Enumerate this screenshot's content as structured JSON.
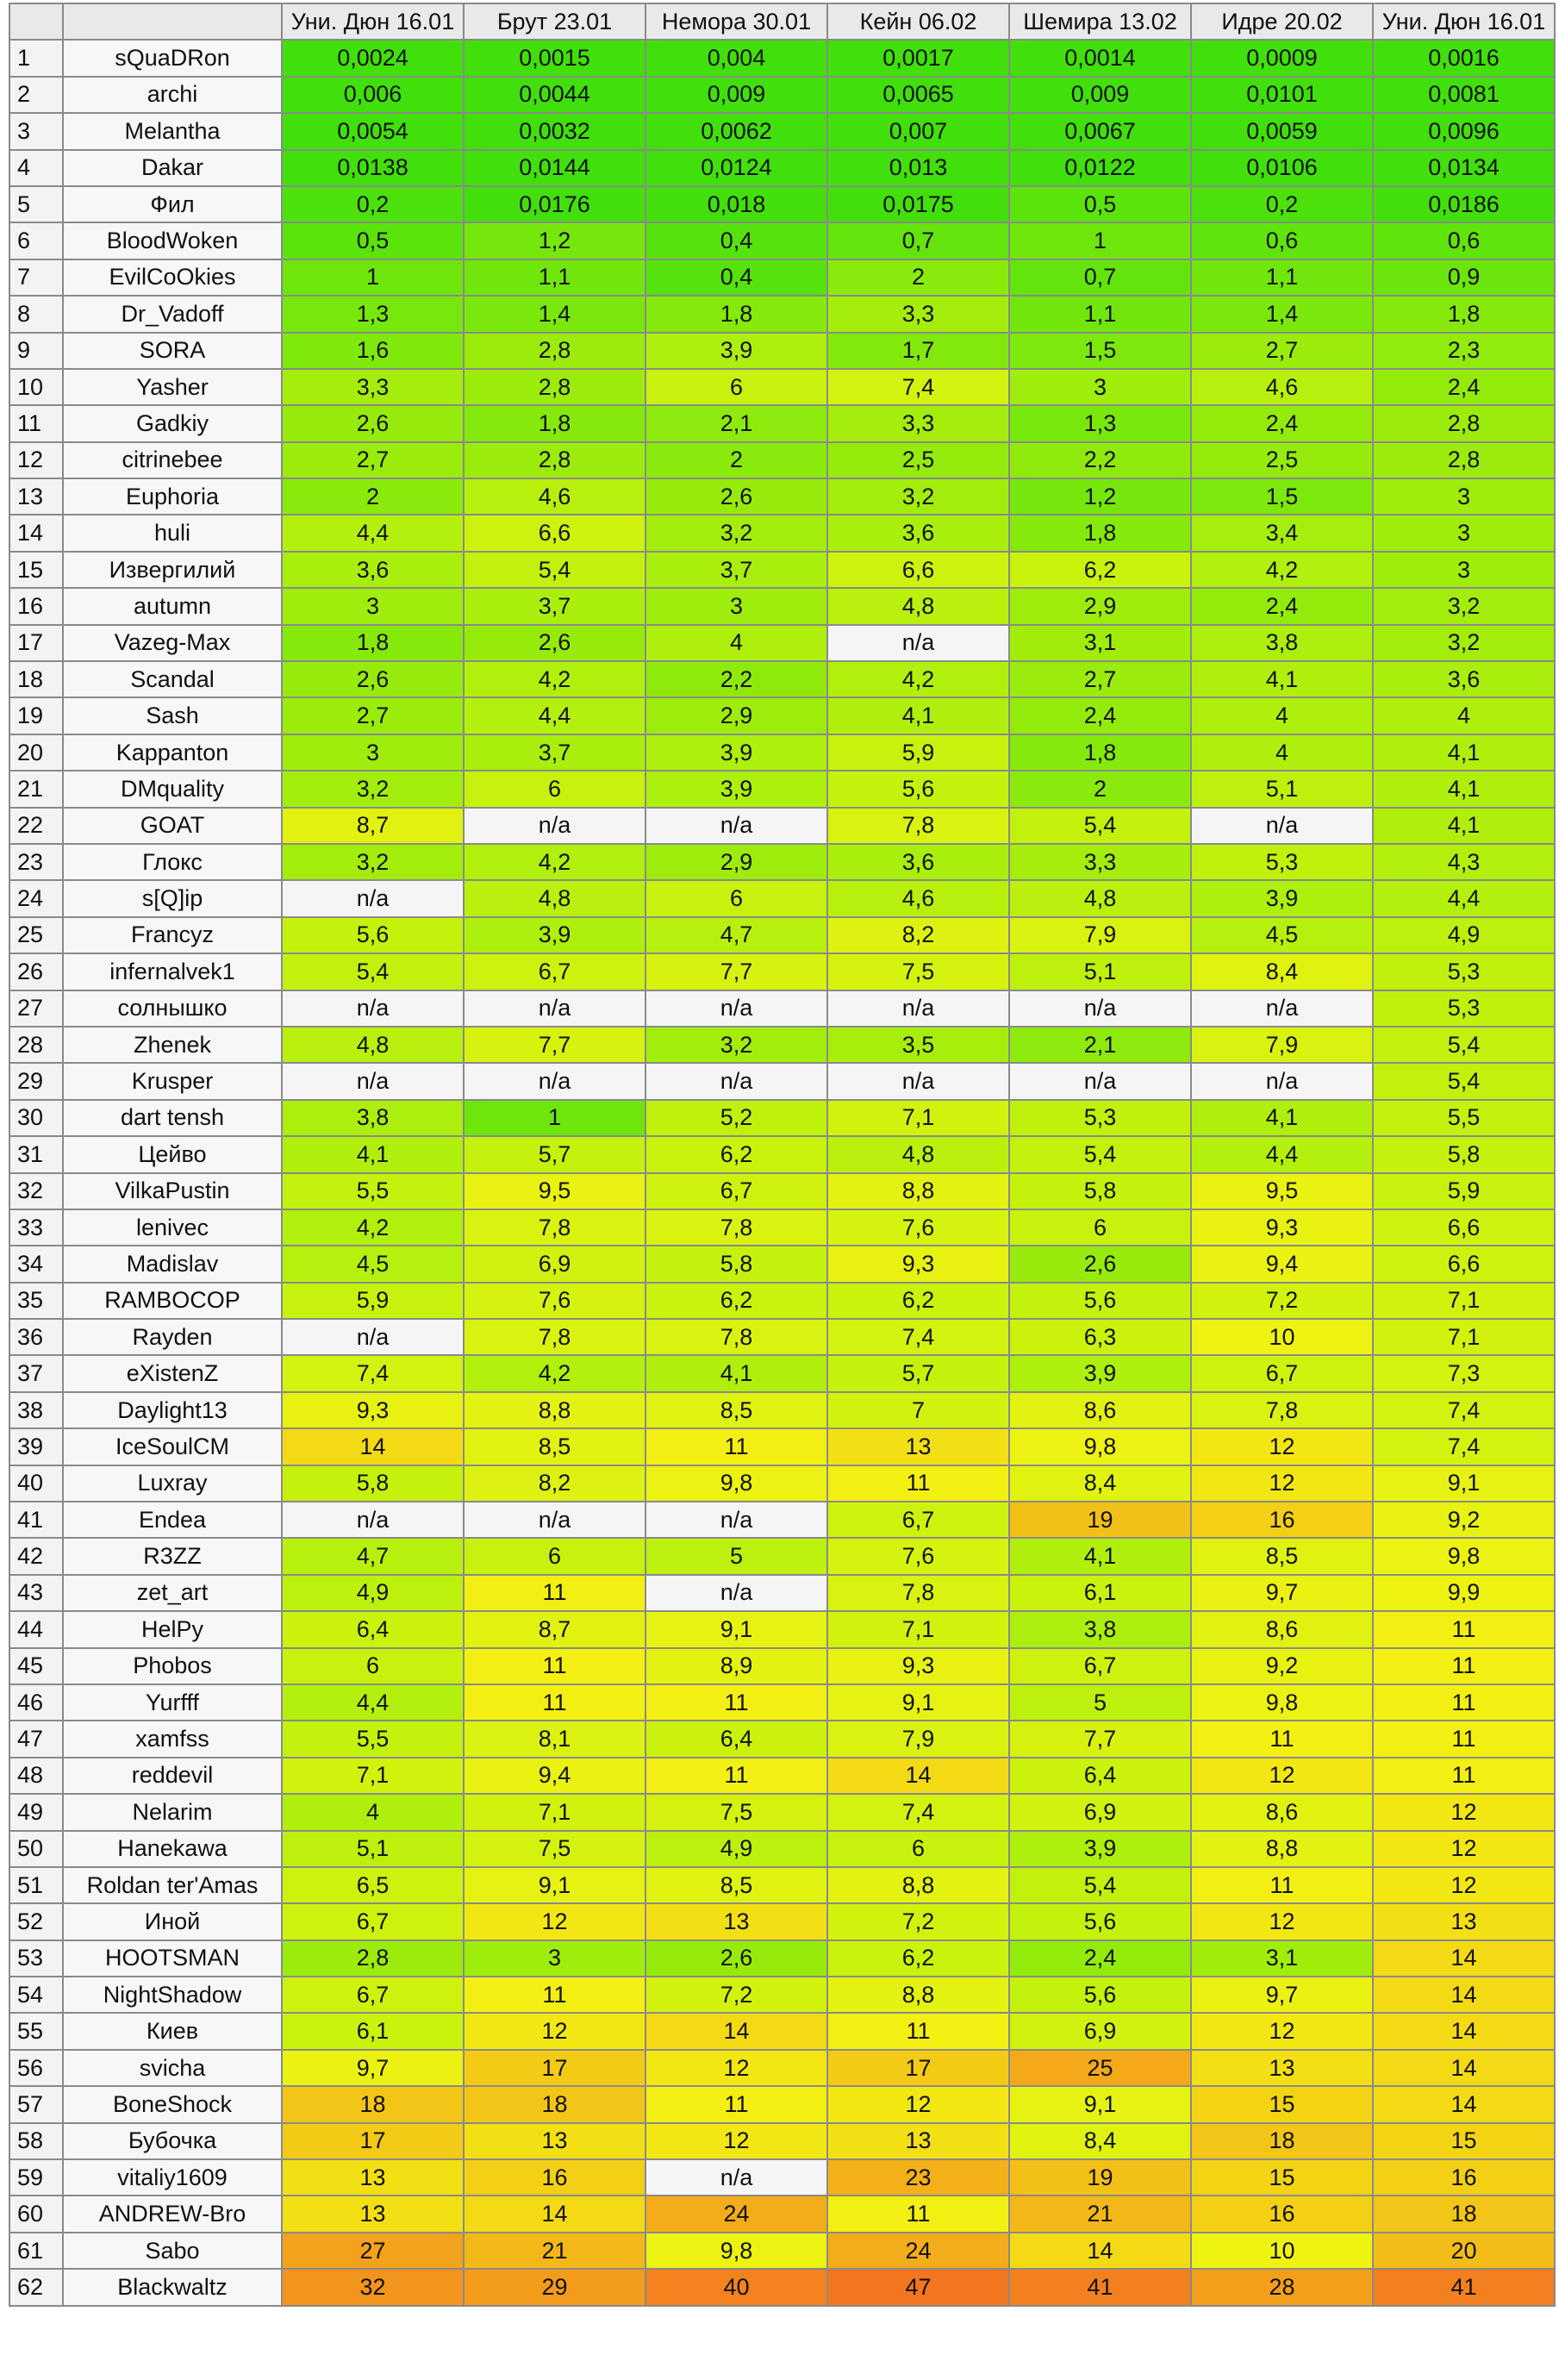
{
  "columns": [
    "",
    "",
    "Уни. Дюн 16.01",
    "Брут 23.01",
    "Немора 30.01",
    "Кейн 06.02",
    "Шемира 13.02",
    "Идре 20.02",
    "Уни. Дюн 16.01"
  ],
  "rows": [
    [
      "1",
      "sQuaDRon",
      "0,0024",
      "0,0015",
      "0,004",
      "0,0017",
      "0,0014",
      "0,0009",
      "0,0016"
    ],
    [
      "2",
      "archi",
      "0,006",
      "0,0044",
      "0,009",
      "0,0065",
      "0,009",
      "0,0101",
      "0,0081"
    ],
    [
      "3",
      "Melantha",
      "0,0054",
      "0,0032",
      "0,0062",
      "0,007",
      "0,0067",
      "0,0059",
      "0,0096"
    ],
    [
      "4",
      "Dakar",
      "0,0138",
      "0,0144",
      "0,0124",
      "0,013",
      "0,0122",
      "0,0106",
      "0,0134"
    ],
    [
      "5",
      "Фил",
      "0,2",
      "0,0176",
      "0,018",
      "0,0175",
      "0,5",
      "0,2",
      "0,0186"
    ],
    [
      "6",
      "BloodWoken",
      "0,5",
      "1,2",
      "0,4",
      "0,7",
      "1",
      "0,6",
      "0,6"
    ],
    [
      "7",
      "EvilCoOkies",
      "1",
      "1,1",
      "0,4",
      "2",
      "0,7",
      "1,1",
      "0,9"
    ],
    [
      "8",
      "Dr_Vadoff",
      "1,3",
      "1,4",
      "1,8",
      "3,3",
      "1,1",
      "1,4",
      "1,8"
    ],
    [
      "9",
      "SORA",
      "1,6",
      "2,8",
      "3,9",
      "1,7",
      "1,5",
      "2,7",
      "2,3"
    ],
    [
      "10",
      "Yasher",
      "3,3",
      "2,8",
      "6",
      "7,4",
      "3",
      "4,6",
      "2,4"
    ],
    [
      "11",
      "Gadkiy",
      "2,6",
      "1,8",
      "2,1",
      "3,3",
      "1,3",
      "2,4",
      "2,8"
    ],
    [
      "12",
      "citrinebee",
      "2,7",
      "2,8",
      "2",
      "2,5",
      "2,2",
      "2,5",
      "2,8"
    ],
    [
      "13",
      "Euphoria",
      "2",
      "4,6",
      "2,6",
      "3,2",
      "1,2",
      "1,5",
      "3"
    ],
    [
      "14",
      "huli",
      "4,4",
      "6,6",
      "3,2",
      "3,6",
      "1,8",
      "3,4",
      "3"
    ],
    [
      "15",
      "Извергилий",
      "3,6",
      "5,4",
      "3,7",
      "6,6",
      "6,2",
      "4,2",
      "3"
    ],
    [
      "16",
      "autumn",
      "3",
      "3,7",
      "3",
      "4,8",
      "2,9",
      "2,4",
      "3,2"
    ],
    [
      "17",
      "Vazeg-Max",
      "1,8",
      "2,6",
      "4",
      "n/a",
      "3,1",
      "3,8",
      "3,2"
    ],
    [
      "18",
      "Scandal",
      "2,6",
      "4,2",
      "2,2",
      "4,2",
      "2,7",
      "4,1",
      "3,6"
    ],
    [
      "19",
      "Sash",
      "2,7",
      "4,4",
      "2,9",
      "4,1",
      "2,4",
      "4",
      "4"
    ],
    [
      "20",
      "Kappanton",
      "3",
      "3,7",
      "3,9",
      "5,9",
      "1,8",
      "4",
      "4,1"
    ],
    [
      "21",
      "DMquality",
      "3,2",
      "6",
      "3,9",
      "5,6",
      "2",
      "5,1",
      "4,1"
    ],
    [
      "22",
      "GOAT",
      "8,7",
      "n/a",
      "n/a",
      "7,8",
      "5,4",
      "n/a",
      "4,1"
    ],
    [
      "23",
      "Глокс",
      "3,2",
      "4,2",
      "2,9",
      "3,6",
      "3,3",
      "5,3",
      "4,3"
    ],
    [
      "24",
      "s[Q]ip",
      "n/a",
      "4,8",
      "6",
      "4,6",
      "4,8",
      "3,9",
      "4,4"
    ],
    [
      "25",
      "Francyz",
      "5,6",
      "3,9",
      "4,7",
      "8,2",
      "7,9",
      "4,5",
      "4,9"
    ],
    [
      "26",
      "infernalvek1",
      "5,4",
      "6,7",
      "7,7",
      "7,5",
      "5,1",
      "8,4",
      "5,3"
    ],
    [
      "27",
      "солнышко",
      "n/a",
      "n/a",
      "n/a",
      "n/a",
      "n/a",
      "n/a",
      "5,3"
    ],
    [
      "28",
      "Zhenek",
      "4,8",
      "7,7",
      "3,2",
      "3,5",
      "2,1",
      "7,9",
      "5,4"
    ],
    [
      "29",
      "Krusper",
      "n/a",
      "n/a",
      "n/a",
      "n/a",
      "n/a",
      "n/a",
      "5,4"
    ],
    [
      "30",
      "dart tensh",
      "3,8",
      "1",
      "5,2",
      "7,1",
      "5,3",
      "4,1",
      "5,5"
    ],
    [
      "31",
      "Цейво",
      "4,1",
      "5,7",
      "6,2",
      "4,8",
      "5,4",
      "4,4",
      "5,8"
    ],
    [
      "32",
      "VilkaPustin",
      "5,5",
      "9,5",
      "6,7",
      "8,8",
      "5,8",
      "9,5",
      "5,9"
    ],
    [
      "33",
      "lenivec",
      "4,2",
      "7,8",
      "7,8",
      "7,6",
      "6",
      "9,3",
      "6,6"
    ],
    [
      "34",
      "Madislav",
      "4,5",
      "6,9",
      "5,8",
      "9,3",
      "2,6",
      "9,4",
      "6,6"
    ],
    [
      "35",
      "RAMBOCOP",
      "5,9",
      "7,6",
      "6,2",
      "6,2",
      "5,6",
      "7,2",
      "7,1"
    ],
    [
      "36",
      "Rayden",
      "n/a",
      "7,8",
      "7,8",
      "7,4",
      "6,3",
      "10",
      "7,1"
    ],
    [
      "37",
      "eXistenZ",
      "7,4",
      "4,2",
      "4,1",
      "5,7",
      "3,9",
      "6,7",
      "7,3"
    ],
    [
      "38",
      "Daylight13",
      "9,3",
      "8,8",
      "8,5",
      "7",
      "8,6",
      "7,8",
      "7,4"
    ],
    [
      "39",
      "IceSoulCM",
      "14",
      "8,5",
      "11",
      "13",
      "9,8",
      "12",
      "7,4"
    ],
    [
      "40",
      "Luxray",
      "5,8",
      "8,2",
      "9,8",
      "11",
      "8,4",
      "12",
      "9,1"
    ],
    [
      "41",
      "Endea",
      "n/a",
      "n/a",
      "n/a",
      "6,7",
      "19",
      "16",
      "9,2"
    ],
    [
      "42",
      "R3ZZ",
      "4,7",
      "6",
      "5",
      "7,6",
      "4,1",
      "8,5",
      "9,8"
    ],
    [
      "43",
      "zet_art",
      "4,9",
      "11",
      "n/a",
      "7,8",
      "6,1",
      "9,7",
      "9,9"
    ],
    [
      "44",
      "HelPy",
      "6,4",
      "8,7",
      "9,1",
      "7,1",
      "3,8",
      "8,6",
      "11"
    ],
    [
      "45",
      "Phobos",
      "6",
      "11",
      "8,9",
      "9,3",
      "6,7",
      "9,2",
      "11"
    ],
    [
      "46",
      "Yurfff",
      "4,4",
      "11",
      "11",
      "9,1",
      "5",
      "9,8",
      "11"
    ],
    [
      "47",
      "xamfss",
      "5,5",
      "8,1",
      "6,4",
      "7,9",
      "7,7",
      "11",
      "11"
    ],
    [
      "48",
      "reddevil",
      "7,1",
      "9,4",
      "11",
      "14",
      "6,4",
      "12",
      "11"
    ],
    [
      "49",
      "Nelarim",
      "4",
      "7,1",
      "7,5",
      "7,4",
      "6,9",
      "8,6",
      "12"
    ],
    [
      "50",
      "Hanekawa",
      "5,1",
      "7,5",
      "4,9",
      "6",
      "3,9",
      "8,8",
      "12"
    ],
    [
      "51",
      "Roldan ter'Amas",
      "6,5",
      "9,1",
      "8,5",
      "8,8",
      "5,4",
      "11",
      "12"
    ],
    [
      "52",
      "Иной",
      "6,7",
      "12",
      "13",
      "7,2",
      "5,6",
      "12",
      "13"
    ],
    [
      "53",
      "HOOTSMAN",
      "2,8",
      "3",
      "2,6",
      "6,2",
      "2,4",
      "3,1",
      "14"
    ],
    [
      "54",
      "NightShadow",
      "6,7",
      "11",
      "7,2",
      "8,8",
      "5,6",
      "9,7",
      "14"
    ],
    [
      "55",
      "Киев",
      "6,1",
      "12",
      "14",
      "11",
      "6,9",
      "12",
      "14"
    ],
    [
      "56",
      "svicha",
      "9,7",
      "17",
      "12",
      "17",
      "25",
      "13",
      "14"
    ],
    [
      "57",
      "BoneShock",
      "18",
      "18",
      "11",
      "12",
      "9,1",
      "15",
      "14"
    ],
    [
      "58",
      "Бубочка",
      "17",
      "13",
      "12",
      "13",
      "8,4",
      "18",
      "15"
    ],
    [
      "59",
      "vitaliy1609",
      "13",
      "16",
      "n/a",
      "23",
      "19",
      "15",
      "16"
    ],
    [
      "60",
      "ANDREW-Bro",
      "13",
      "14",
      "24",
      "11",
      "21",
      "16",
      "18"
    ],
    [
      "61",
      "Sabo",
      "27",
      "21",
      "9,8",
      "24",
      "14",
      "10",
      "20"
    ],
    [
      "62",
      "Blackwaltz",
      "32",
      "29",
      "40",
      "47",
      "41",
      "28",
      "41"
    ]
  ]
}
